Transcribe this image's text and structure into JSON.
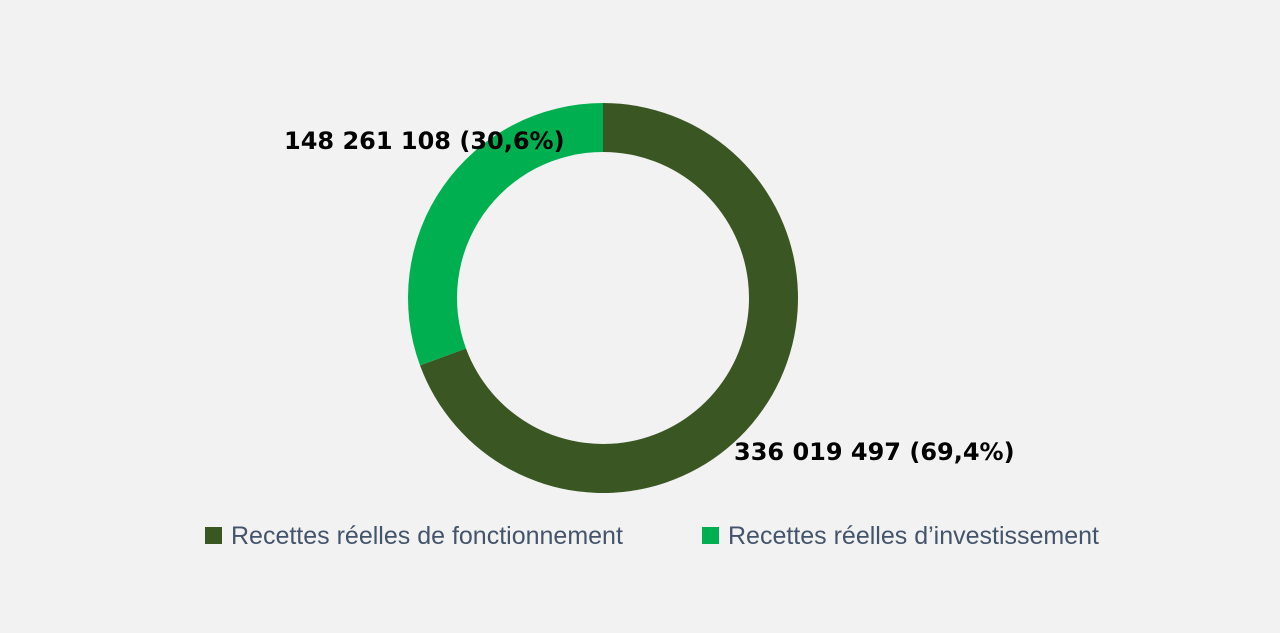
{
  "chart_data": {
    "type": "pie",
    "donut": true,
    "title": "",
    "series": [
      {
        "name": "Recettes réelles de fonctionnement",
        "value": 336019497,
        "label": "336 019 497 (69,4%)",
        "color": "#3a5723"
      },
      {
        "name": "Recettes réelles d’investissement",
        "value": 148261108,
        "label": "148 261 108 (30,6%)",
        "color": "#00b050"
      }
    ],
    "legend_position": "bottom"
  }
}
